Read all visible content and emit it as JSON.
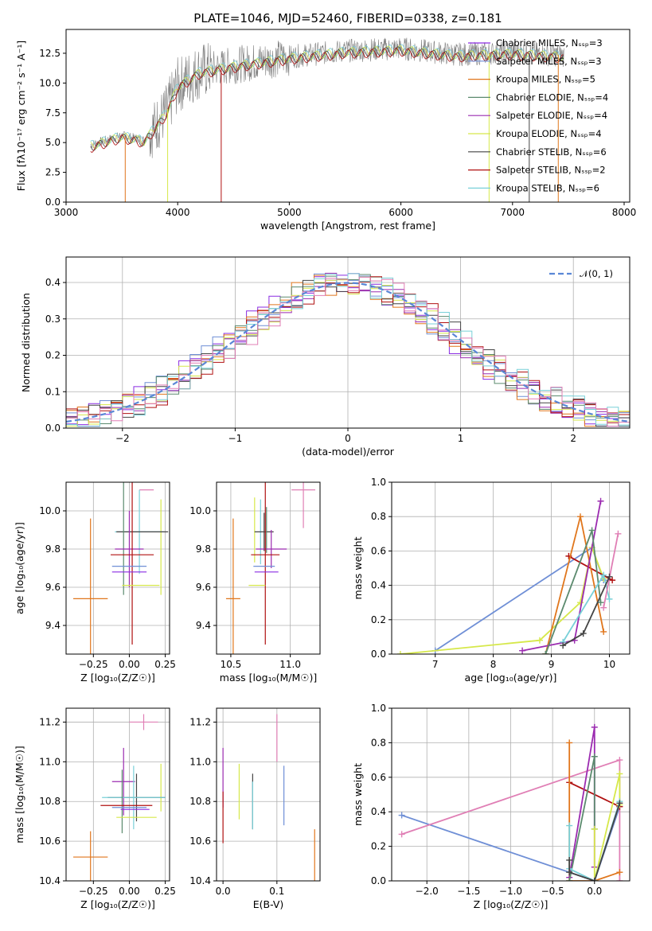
{
  "figure_title": "PLATE=1046, MJD=52460, FIBERID=0338, z=0.181",
  "colors": {
    "Chabrier MILES": "#8a2be2",
    "Salpeter MILES": "#6f8fd6",
    "Kroupa MILES": "#e0761c",
    "Chabrier ELODIE": "#5b8a6e",
    "Salpeter ELODIE": "#9b2bb0",
    "Kroupa ELODIE": "#d6e84a",
    "Chabrier STELIB": "#444444",
    "Salpeter STELIB": "#b01010",
    "Kroupa STELIB": "#78d0d8",
    "extra_pink": "#e07fb5",
    "gauss": "#5a87d6",
    "data": "#808080"
  },
  "chart_data": [
    {
      "id": "spectrum",
      "type": "line",
      "title": "PLATE=1046, MJD=52460, FIBERID=0338, z=0.181",
      "xlabel": "wavelength [Angstrom, rest frame]",
      "ylabel": "Flux [fλ10⁻¹⁷ erg cm⁻² s⁻¹ A⁻¹]",
      "xlim": [
        3000,
        8050
      ],
      "ylim": [
        0,
        14.5
      ],
      "xticks": [
        3000,
        4000,
        5000,
        6000,
        7000,
        8000
      ],
      "yticks": [
        0.0,
        2.5,
        5.0,
        7.5,
        10.0,
        12.5
      ],
      "legend_position": "right",
      "legend": [
        "Chabrier MILES, Nₛₛₚ=3",
        "Salpeter MILES, Nₛₛₚ=3",
        "Kroupa MILES, Nₛₛₚ=5",
        "Chabrier ELODIE, Nₛₛₚ=4",
        "Salpeter ELODIE, Nₛₛₚ=4",
        "Kroupa ELODIE, Nₛₛₚ=4",
        "Chabrier STELIB, Nₛₛₚ=6",
        "Salpeter STELIB, Nₛₛₚ=2",
        "Kroupa STELIB, Nₛₛₚ=6"
      ],
      "continuum_x": [
        3220,
        3500,
        3700,
        3900,
        4000,
        4200,
        4500,
        5000,
        5500,
        6000,
        6500,
        7000,
        7500
      ],
      "continuum_y": [
        4.8,
        5.6,
        5.2,
        7.6,
        9.8,
        11.0,
        11.5,
        12.2,
        12.7,
        12.9,
        12.4,
        12.6,
        12.3
      ]
    },
    {
      "id": "residuals",
      "type": "histogram",
      "xlabel": "(data-model)/error",
      "ylabel": "Normed distribution",
      "xlim": [
        -2.5,
        2.5
      ],
      "ylim": [
        0,
        0.47
      ],
      "xticks": [
        -2,
        -1,
        0,
        1,
        2
      ],
      "yticks": [
        0.0,
        0.1,
        0.2,
        0.3,
        0.4
      ],
      "grid": true,
      "legend_position": "top-right",
      "legend": [
        "𝒩(0, 1)"
      ]
    },
    {
      "id": "age_vs_Z",
      "type": "errorbar",
      "xlabel": "Z [log₁₀(Z/Z☉)]",
      "ylabel": "age  [log₁₀(age/yr)]",
      "xlim": [
        -0.44,
        0.28
      ],
      "ylim": [
        9.25,
        10.15
      ],
      "xticks": [
        -0.25,
        0.0,
        0.25
      ],
      "yticks": [
        9.4,
        9.6,
        9.8,
        10.0
      ],
      "grid": true,
      "points": [
        {
          "model": "extra_pink",
          "x": 0.12,
          "y": 10.11,
          "xerr": 0.05,
          "yerr": 0.0
        },
        {
          "model": "Kroupa ELODIE",
          "x": 0.22,
          "y": 9.81,
          "xerr": 0.0,
          "yerr": 0.25
        },
        {
          "model": "Kroupa STELIB",
          "x": 0.07,
          "y": 9.89,
          "xerr": 0.17,
          "yerr": 0.22
        },
        {
          "model": "Chabrier STELIB",
          "x": 0.09,
          "y": 9.89,
          "xerr": 0.18,
          "yerr": 0.0
        },
        {
          "model": "Chabrier ELODIE",
          "x": -0.04,
          "y": 9.89,
          "xerr": 0.0,
          "yerr": 0.33
        },
        {
          "model": "Salpeter ELODIE",
          "x": 0.0,
          "y": 9.8,
          "xerr": 0.1,
          "yerr": 0.2
        },
        {
          "model": "Salpeter STELIB",
          "x": 0.02,
          "y": 9.77,
          "xerr": 0.15,
          "yerr": 0.47
        },
        {
          "model": "Salpeter MILES",
          "x": 0.0,
          "y": 9.71,
          "xerr": 0.12,
          "yerr": 0.0
        },
        {
          "model": "Chabrier MILES",
          "x": 0.0,
          "y": 9.68,
          "xerr": 0.12,
          "yerr": 0.0
        },
        {
          "model": "Kroupa ELODIE",
          "x": 0.08,
          "y": 9.61,
          "xerr": 0.13,
          "yerr": 0.0
        },
        {
          "model": "Kroupa MILES",
          "x": -0.27,
          "y": 9.54,
          "xerr": 0.12,
          "yerr": 0.42
        }
      ]
    },
    {
      "id": "age_vs_mass",
      "type": "errorbar",
      "xlabel": "mass [log₁₀(M/M☉)]",
      "ylabel": "",
      "xlim": [
        10.38,
        11.25
      ],
      "ylim": [
        9.25,
        10.15
      ],
      "xticks": [
        10.5,
        11.0
      ],
      "yticks": [
        9.4,
        9.6,
        9.8,
        10.0
      ],
      "grid": true,
      "points": [
        {
          "model": "extra_pink",
          "x": 11.11,
          "y": 10.11,
          "xerr": 0.1,
          "yerr": 0.2
        },
        {
          "model": "Kroupa ELODIE",
          "x": 10.7,
          "y": 9.9,
          "xerr": 0.0,
          "yerr": 0.17
        },
        {
          "model": "Kroupa STELIB",
          "x": 10.75,
          "y": 9.89,
          "xerr": 0.0,
          "yerr": 0.17
        },
        {
          "model": "Chabrier STELIB",
          "x": 10.78,
          "y": 9.89,
          "xerr": 0.08,
          "yerr": 0.1
        },
        {
          "model": "Chabrier ELODIE",
          "x": 10.8,
          "y": 9.9,
          "xerr": 0.0,
          "yerr": 0.12
        },
        {
          "model": "Salpeter ELODIE",
          "x": 10.84,
          "y": 9.8,
          "xerr": 0.13,
          "yerr": 0.1
        },
        {
          "model": "Salpeter STELIB",
          "x": 10.79,
          "y": 9.77,
          "xerr": 0.12,
          "yerr": 0.47
        },
        {
          "model": "Salpeter MILES",
          "x": 10.78,
          "y": 9.71,
          "xerr": 0.09,
          "yerr": 0.0
        },
        {
          "model": "Chabrier MILES",
          "x": 10.8,
          "y": 9.68,
          "xerr": 0.1,
          "yerr": 0.0
        },
        {
          "model": "Kroupa ELODIE",
          "x": 10.72,
          "y": 9.61,
          "xerr": 0.07,
          "yerr": 0.0
        },
        {
          "model": "Kroupa MILES",
          "x": 10.52,
          "y": 9.54,
          "xerr": 0.06,
          "yerr": 0.42
        }
      ]
    },
    {
      "id": "mw_vs_age",
      "type": "line",
      "xlabel": "age  [log₁₀(age/yr)]",
      "ylabel": "mass weight",
      "xlim": [
        6.25,
        10.35
      ],
      "ylim": [
        0,
        1.0
      ],
      "xticks": [
        7,
        8,
        9,
        10
      ],
      "yticks": [
        0.0,
        0.2,
        0.4,
        0.6,
        0.8,
        1.0
      ],
      "grid": true,
      "series": [
        {
          "model": "Salpeter MILES",
          "x": [
            7.0,
            9.7,
            9.9
          ],
          "y": [
            0.02,
            0.62,
            0.43
          ]
        },
        {
          "model": "Kroupa ELODIE",
          "x": [
            6.4,
            8.8,
            9.5,
            9.7,
            9.9
          ],
          "y": [
            0.0,
            0.08,
            0.3,
            0.62,
            0.44
          ]
        },
        {
          "model": "Salpeter STELIB",
          "x": [
            9.3,
            10.05
          ],
          "y": [
            0.57,
            0.43
          ]
        },
        {
          "model": "Kroupa MILES",
          "x": [
            8.9,
            9.5,
            9.9
          ],
          "y": [
            0.0,
            0.8,
            0.13
          ]
        },
        {
          "model": "Salpeter ELODIE",
          "x": [
            8.5,
            9.4,
            9.85
          ],
          "y": [
            0.02,
            0.08,
            0.89
          ]
        },
        {
          "model": "Chabrier ELODIE",
          "x": [
            8.9,
            9.7,
            9.85
          ],
          "y": [
            0.0,
            0.72,
            0.3
          ]
        },
        {
          "model": "Kroupa STELIB",
          "x": [
            9.2,
            9.9,
            10.0
          ],
          "y": [
            0.07,
            0.46,
            0.32
          ]
        },
        {
          "model": "extra_pink",
          "x": [
            9.9,
            10.15
          ],
          "y": [
            0.27,
            0.7
          ]
        },
        {
          "model": "Chabrier STELIB",
          "x": [
            9.2,
            9.55,
            10.0
          ],
          "y": [
            0.05,
            0.12,
            0.45
          ]
        }
      ]
    },
    {
      "id": "mass_vs_Z",
      "type": "errorbar",
      "xlabel": "Z [log₁₀(Z/Z☉)]",
      "ylabel": "mass [log₁₀(M/M☉)]",
      "xlim": [
        -0.44,
        0.28
      ],
      "ylim": [
        10.4,
        11.27
      ],
      "xticks": [
        -0.25,
        0.0,
        0.25
      ],
      "yticks": [
        10.4,
        10.6,
        10.8,
        11.0,
        11.2
      ],
      "grid": true,
      "points": [
        {
          "model": "extra_pink",
          "x": 0.1,
          "y": 11.2,
          "xerr": 0.1,
          "yerr": 0.04
        },
        {
          "model": "Kroupa ELODIE",
          "x": 0.22,
          "y": 10.87,
          "xerr": 0.0,
          "yerr": 0.12
        },
        {
          "model": "Salpeter ELODIE",
          "x": -0.04,
          "y": 10.9,
          "xerr": 0.08,
          "yerr": 0.17
        },
        {
          "model": "Chabrier STELIB",
          "x": 0.05,
          "y": 10.82,
          "xerr": 0.2,
          "yerr": 0.12
        },
        {
          "model": "Kroupa STELIB",
          "x": 0.03,
          "y": 10.82,
          "xerr": 0.22,
          "yerr": 0.16
        },
        {
          "model": "Chabrier ELODIE",
          "x": -0.05,
          "y": 10.8,
          "xerr": 0.0,
          "yerr": 0.16
        },
        {
          "model": "Salpeter STELIB",
          "x": -0.02,
          "y": 10.78,
          "xerr": 0.18,
          "yerr": 0.0
        },
        {
          "model": "Salpeter MILES",
          "x": 0.0,
          "y": 10.77,
          "xerr": 0.12,
          "yerr": 0.0
        },
        {
          "model": "Chabrier MILES",
          "x": 0.04,
          "y": 10.76,
          "xerr": 0.1,
          "yerr": 0.0
        },
        {
          "model": "Kroupa ELODIE",
          "x": 0.05,
          "y": 10.72,
          "xerr": 0.14,
          "yerr": 0.0
        },
        {
          "model": "Kroupa MILES",
          "x": -0.27,
          "y": 10.52,
          "xerr": 0.12,
          "yerr": 0.13
        }
      ]
    },
    {
      "id": "mass_vs_EBV",
      "type": "errorbar",
      "xlabel": "E(B-V)",
      "ylabel": "",
      "xlim": [
        -0.012,
        0.18
      ],
      "ylim": [
        10.4,
        11.27
      ],
      "xticks": [
        0.0,
        0.1
      ],
      "yticks": [
        10.4,
        10.6,
        10.8,
        11.0,
        11.2
      ],
      "grid": true,
      "points": [
        {
          "model": "Salpeter ELODIE",
          "x": 0.0,
          "y": 10.92,
          "xerr": 0.0,
          "yerr": 0.15
        },
        {
          "model": "Salpeter STELIB",
          "x": 0.0,
          "y": 10.72,
          "xerr": 0.0,
          "yerr": 0.13
        },
        {
          "model": "Kroupa ELODIE",
          "x": 0.03,
          "y": 10.85,
          "xerr": 0.0,
          "yerr": 0.14
        },
        {
          "model": "Chabrier STELIB",
          "x": 0.055,
          "y": 10.8,
          "xerr": 0.0,
          "yerr": 0.14
        },
        {
          "model": "Kroupa STELIB",
          "x": 0.055,
          "y": 10.78,
          "xerr": 0.0,
          "yerr": 0.12
        },
        {
          "model": "extra_pink",
          "x": 0.1,
          "y": 11.12,
          "xerr": 0.0,
          "yerr": 0.12
        },
        {
          "model": "Salpeter MILES",
          "x": 0.113,
          "y": 10.83,
          "xerr": 0.0,
          "yerr": 0.15
        },
        {
          "model": "Kroupa MILES",
          "x": 0.17,
          "y": 10.52,
          "xerr": 0.0,
          "yerr": 0.14
        }
      ]
    },
    {
      "id": "mw_vs_Z",
      "type": "line",
      "xlabel": "Z [log₁₀(Z/Z☉)]",
      "ylabel": "mass weight",
      "xlim": [
        -2.42,
        0.42
      ],
      "ylim": [
        0,
        1.0
      ],
      "xticks": [
        -2.0,
        -1.5,
        -1.0,
        -0.5,
        0.0
      ],
      "yticks": [
        0.0,
        0.2,
        0.4,
        0.6,
        0.8,
        1.0
      ],
      "grid": true,
      "series": [
        {
          "model": "Salpeter MILES",
          "x": [
            -2.3,
            0.0,
            0.3
          ],
          "y": [
            0.38,
            0.0,
            0.43
          ]
        },
        {
          "model": "extra_pink",
          "x": [
            -2.3,
            0.3,
            0.3
          ],
          "y": [
            0.27,
            0.7,
            0.0
          ]
        },
        {
          "model": "Salpeter STELIB",
          "x": [
            -0.3,
            0.3
          ],
          "y": [
            0.57,
            0.43
          ]
        },
        {
          "model": "Kroupa MILES",
          "x": [
            -0.3,
            -0.3,
            0.0,
            0.3
          ],
          "y": [
            0.8,
            0.0,
            0.0,
            0.05
          ]
        },
        {
          "model": "Salpeter ELODIE",
          "x": [
            -0.3,
            0.0,
            0.0
          ],
          "y": [
            0.02,
            0.89,
            0.08
          ]
        },
        {
          "model": "Chabrier ELODIE",
          "x": [
            -0.3,
            0.0,
            0.0
          ],
          "y": [
            0.0,
            0.72,
            0.3
          ]
        },
        {
          "model": "Kroupa ELODIE",
          "x": [
            0.0,
            0.0,
            0.3,
            0.3
          ],
          "y": [
            0.3,
            0.0,
            0.62,
            0.44
          ]
        },
        {
          "model": "Kroupa STELIB",
          "x": [
            -0.3,
            -0.3,
            0.0,
            0.3
          ],
          "y": [
            0.32,
            0.07,
            0.0,
            0.46
          ]
        },
        {
          "model": "Chabrier STELIB",
          "x": [
            -0.3,
            -0.3,
            0.0,
            0.3
          ],
          "y": [
            0.12,
            0.05,
            0.0,
            0.45
          ]
        }
      ]
    }
  ]
}
